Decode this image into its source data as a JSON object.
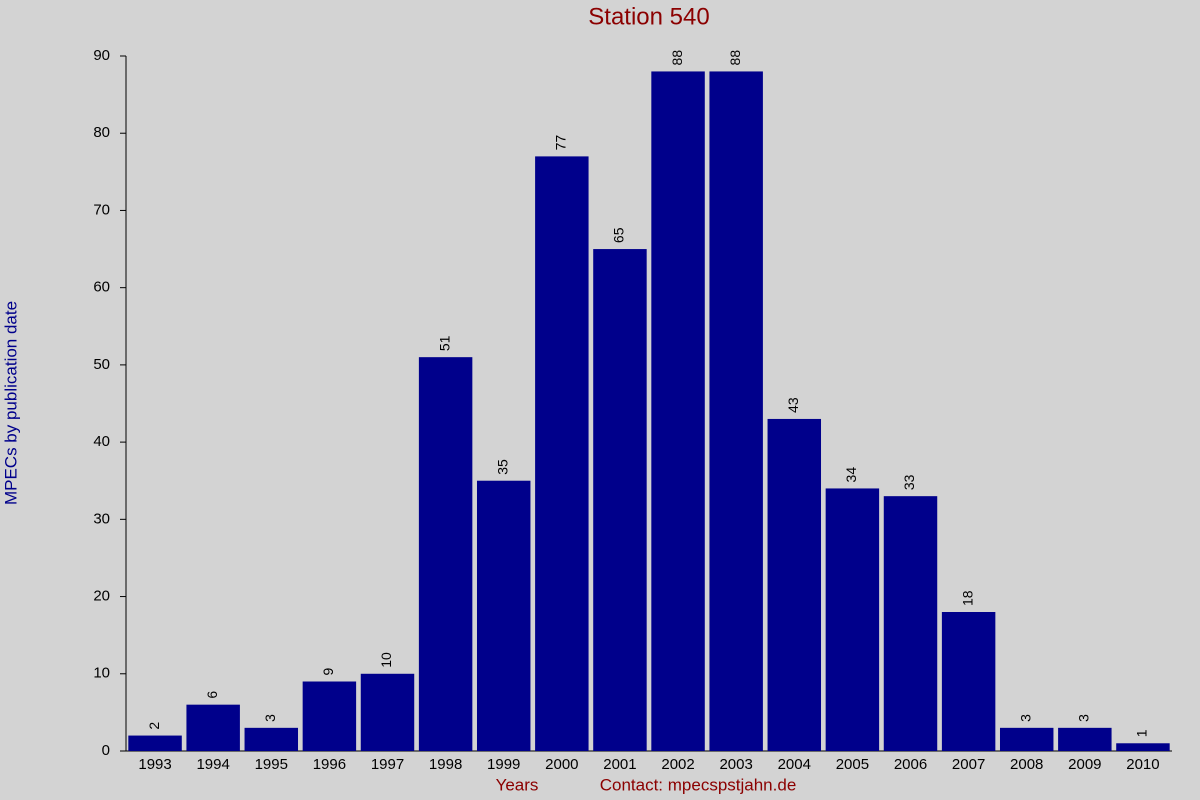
{
  "chart_data": {
    "type": "bar",
    "title": "Station 540",
    "y_label": "MPECs by publication date",
    "x_label": "Years",
    "annotation": "Contact: mpecspstjahn.de",
    "categories": [
      "1993",
      "1994",
      "1995",
      "1996",
      "1997",
      "1998",
      "1999",
      "2000",
      "2001",
      "2002",
      "2003",
      "2004",
      "2005",
      "2006",
      "2007",
      "2008",
      "2009",
      "2010"
    ],
    "values": [
      2,
      6,
      3,
      9,
      10,
      51,
      35,
      77,
      65,
      88,
      88,
      43,
      34,
      33,
      18,
      3,
      3,
      1
    ],
    "color": "#00008b",
    "ylim": [
      0,
      90
    ],
    "yticks": [
      0,
      10,
      20,
      30,
      40,
      50,
      60,
      70,
      80,
      90
    ],
    "grid": false
  }
}
